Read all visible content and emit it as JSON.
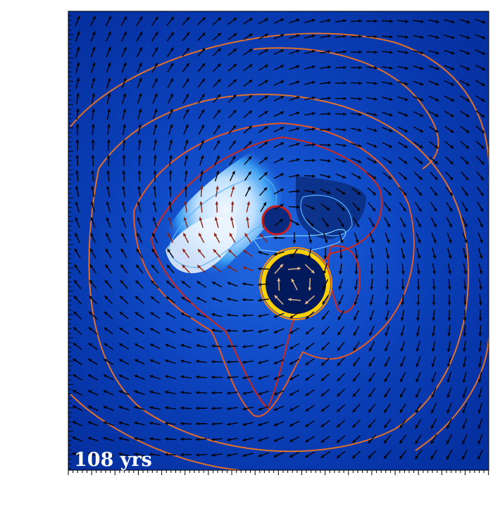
{
  "label": "108 yrs"
}
